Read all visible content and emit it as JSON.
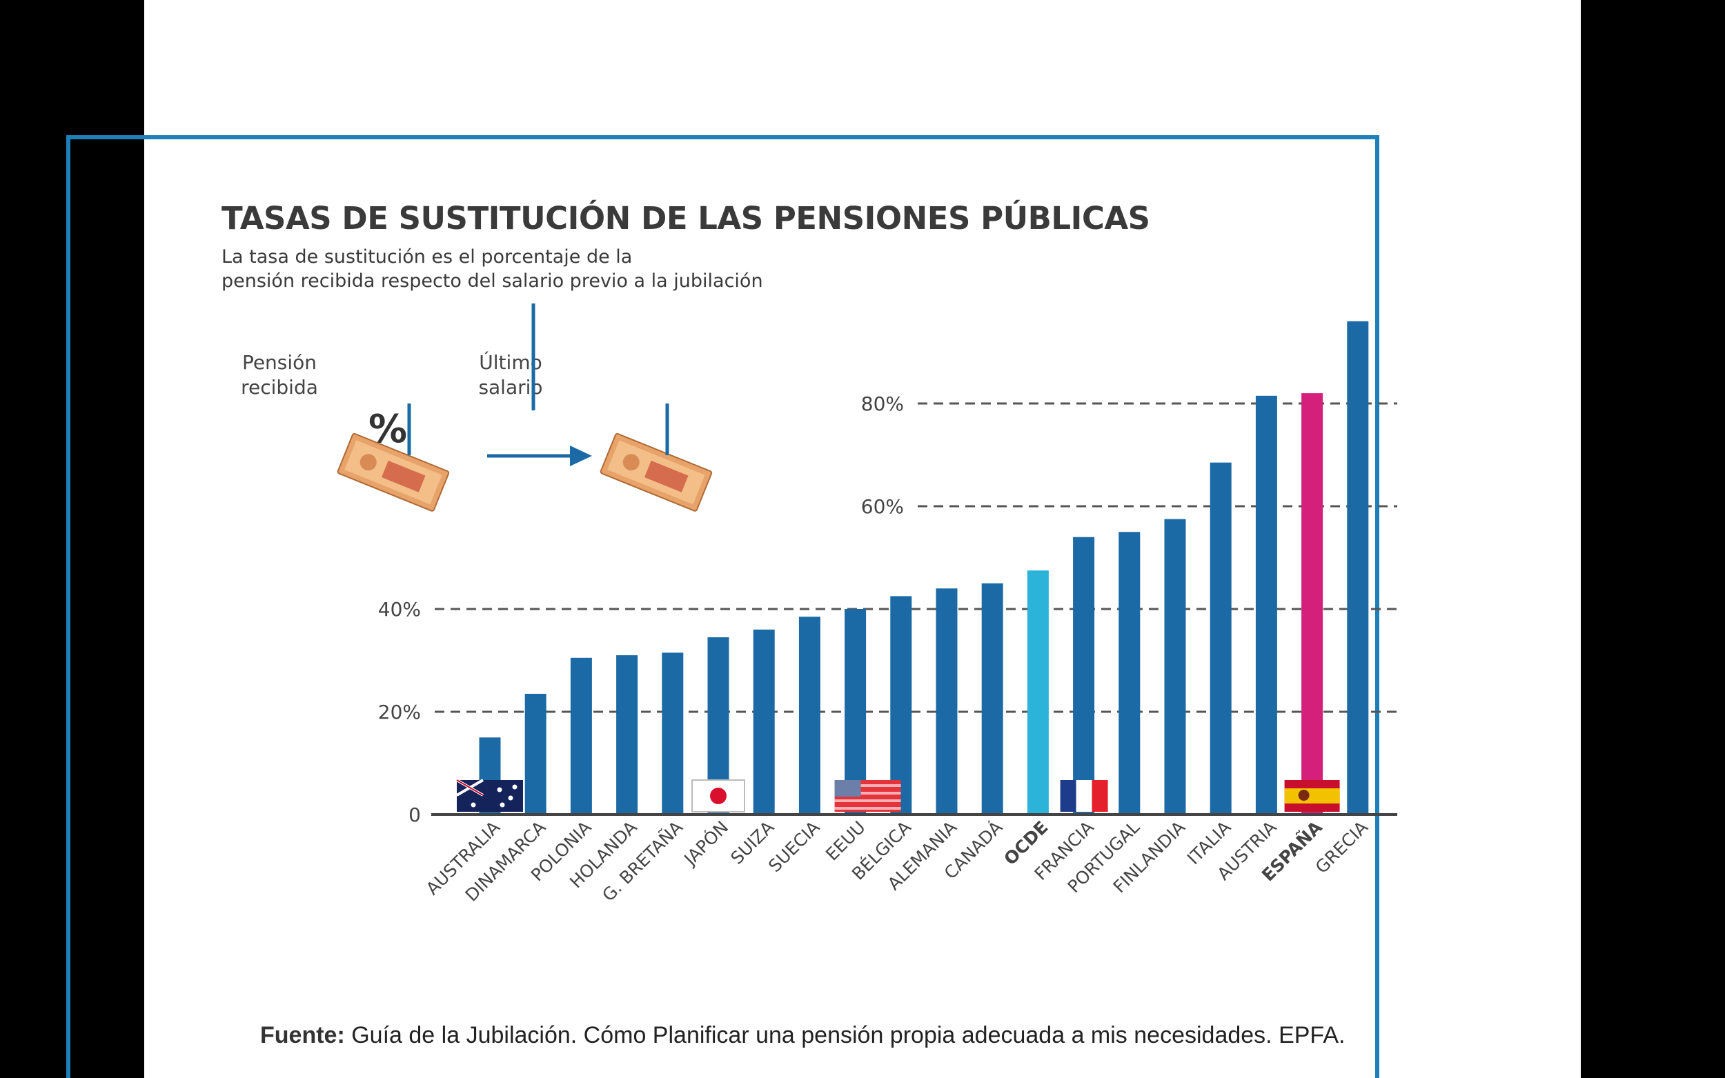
{
  "source": {
    "label": "Fuente:",
    "text": "Guía de la Jubilación. Cómo Planificar una pensión propia adecuada a mis necesidades. EPFA."
  },
  "explainer": {
    "pension_label": [
      "Pensión",
      "recibida"
    ],
    "salary_label": [
      "Último",
      "salario"
    ],
    "symbol": "%"
  },
  "colors": {
    "bar": "#1b6aa5",
    "oecd": "#2bb3d9",
    "spain": "#d4207a",
    "grid": "#555555",
    "axis": "#444444",
    "frame": "#1d80b8"
  },
  "chart_data": {
    "type": "bar",
    "title": "TASAS DE SUSTITUCIÓN DE LAS PENSIONES PÚBLICAS",
    "subtitle": [
      "La tasa de sustitución es el porcentaje de la",
      "pensión recibida respecto del salario previo a la jubilación"
    ],
    "xlabel": "",
    "ylabel": "",
    "ylim": [
      0,
      100
    ],
    "yticks": [
      0,
      20,
      40,
      60,
      80
    ],
    "ytick_labels": [
      "0",
      "20%",
      "40%",
      "60%",
      "80%"
    ],
    "grid": true,
    "categories": [
      "AUSTRALIA",
      "DINAMARCA",
      "POLONIA",
      "HOLANDA",
      "G. BRETAÑA",
      "JAPÓN",
      "SUIZA",
      "SUECIA",
      "EEUU",
      "BÉLGICA",
      "ALEMANIA",
      "CANADÁ",
      "OCDE",
      "FRANCIA",
      "PORTUGAL",
      "FINLANDIA",
      "ITALIA",
      "AUSTRIA",
      "ESPAÑA",
      "GRECIA"
    ],
    "values": [
      15,
      23.5,
      30.5,
      31,
      31.5,
      34.5,
      36,
      38.5,
      40,
      42.5,
      44,
      45,
      47.5,
      54,
      55,
      57.5,
      68.5,
      81.5,
      82,
      96
    ],
    "highlight": {
      "OCDE": "oecd",
      "ESPAÑA": "spain"
    },
    "bold_categories": [
      "OCDE",
      "ESPAÑA"
    ],
    "flags": [
      "AUSTRALIA",
      "JAPÓN",
      "EEUU",
      "FRANCIA",
      "ESPAÑA"
    ]
  }
}
